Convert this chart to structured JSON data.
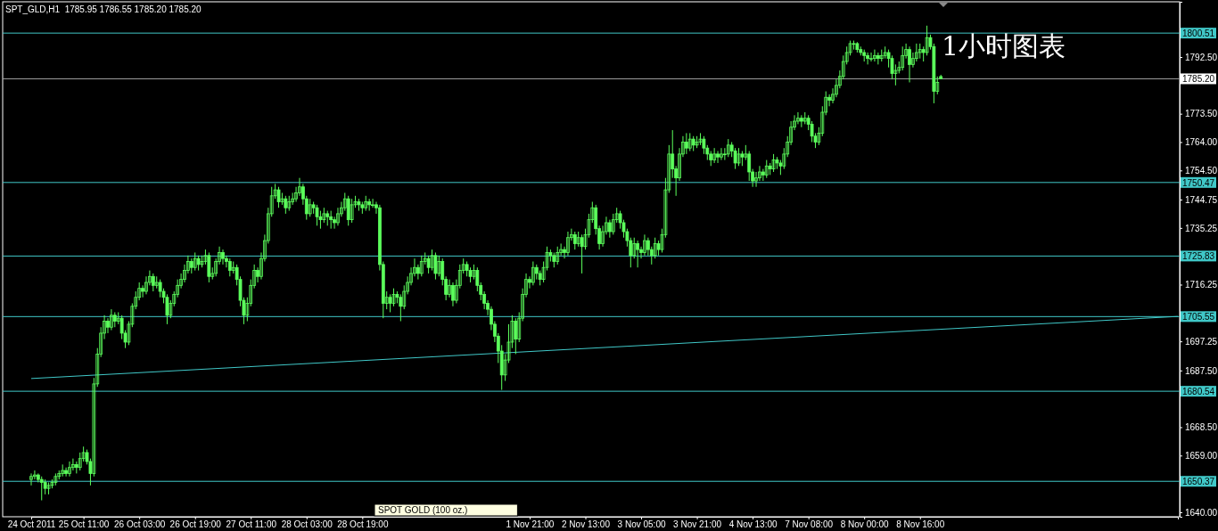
{
  "chart_data": {
    "type": "candlestick",
    "title": "SPT_GLD,H1  1785.95 1786.55 1785.20 1785.20",
    "annotations": [
      "1小时图表",
      "SPOT GOLD (100 oz.)"
    ],
    "categories": [
      "24 Oct 2011",
      null,
      null,
      null,
      null,
      null,
      null,
      null,
      null,
      null,
      null,
      null,
      null,
      null,
      null,
      "25 Oct 11:00",
      null,
      null,
      null,
      null,
      null,
      null,
      null,
      null,
      null,
      null,
      null,
      null,
      null,
      null,
      null,
      "26 Oct 03:00",
      null,
      null,
      null,
      null,
      null,
      null,
      null,
      null,
      null,
      null,
      null,
      null,
      null,
      null,
      null,
      "26 Oct 19:00",
      null,
      null,
      null,
      null,
      null,
      null,
      null,
      null,
      null,
      null,
      null,
      null,
      null,
      null,
      null,
      "27 Oct 11:00",
      null,
      null,
      null,
      null,
      null,
      null,
      null,
      null,
      null,
      null,
      null,
      null,
      null,
      null,
      null,
      "28 Oct 03:00",
      null,
      null,
      null,
      null,
      null,
      null,
      null,
      null,
      null,
      null,
      null,
      null,
      null,
      null,
      null,
      "28 Oct 19:00",
      null,
      null,
      null,
      null,
      null,
      null,
      null,
      null,
      null,
      null,
      null,
      null,
      null,
      null,
      null,
      null,
      null,
      null,
      null,
      null,
      null,
      null,
      null,
      null,
      null,
      null,
      null,
      null,
      null,
      null,
      null,
      null,
      null,
      null,
      null,
      null,
      null,
      null,
      null,
      null,
      null,
      null,
      null,
      null,
      null,
      null,
      null,
      "1 Nov 21:00",
      null,
      null,
      null,
      null,
      null,
      null,
      null,
      null,
      null,
      null,
      null,
      null,
      null,
      null,
      null,
      "2 Nov 13:00",
      null,
      null,
      null,
      null,
      null,
      null,
      null,
      null,
      null,
      null,
      null,
      null,
      null,
      null,
      null,
      "3 Nov 05:00",
      null,
      null,
      null,
      null,
      null,
      null,
      null,
      null,
      null,
      null,
      null,
      null,
      null,
      null,
      null,
      "3 Nov 21:00",
      null,
      null,
      null,
      null,
      null,
      null,
      null,
      null,
      null,
      null,
      null,
      null,
      null,
      null,
      null,
      "4 Nov 13:00",
      null,
      null,
      null,
      null,
      null,
      null,
      null,
      null,
      null,
      null,
      null,
      null,
      null,
      null,
      null,
      "7 Nov 08:00",
      null,
      null,
      null,
      null,
      null,
      null,
      null,
      null,
      null,
      null,
      null,
      null,
      null,
      null,
      null,
      "8 Nov 00:00",
      null,
      null,
      null,
      null,
      null,
      null,
      null,
      null,
      null,
      null,
      null,
      null,
      null,
      null,
      null,
      "8 Nov 16:00",
      null,
      null,
      null,
      null,
      null,
      null,
      null,
      null,
      null,
      null,
      null,
      null,
      null,
      null,
      null,
      null,
      null,
      null,
      null,
      null,
      null,
      null,
      null,
      null,
      null,
      null,
      null,
      null,
      null,
      null,
      null,
      null,
      null,
      null,
      null,
      null,
      null,
      null,
      null,
      null,
      null,
      null,
      null,
      null,
      null,
      null,
      null,
      null,
      null,
      null,
      null,
      null,
      null,
      null,
      null,
      null,
      null,
      null,
      null,
      null,
      null,
      null,
      null,
      null,
      null,
      null,
      null,
      null,
      null,
      null,
      null,
      null,
      null,
      null
    ],
    "ylim": [
      1638.5,
      1811
    ],
    "yticks": [
      {
        "value": 1640,
        "label": "1640.00"
      },
      {
        "value": 1659,
        "label": "1659.00"
      },
      {
        "value": 1668.5,
        "label": "1668.50"
      },
      {
        "value": 1687.5,
        "label": "1687.50"
      },
      {
        "value": 1697.25,
        "label": "1697.25"
      },
      {
        "value": 1716.25,
        "label": "1716.25"
      },
      {
        "value": 1735.25,
        "label": "1735.25"
      },
      {
        "value": 1744.75,
        "label": "1744.75"
      },
      {
        "value": 1754.5,
        "label": "1754.50"
      },
      {
        "value": 1764,
        "label": "1764.00"
      },
      {
        "value": 1773.5,
        "label": "1773.50"
      },
      {
        "value": 1792.5,
        "label": "1792.50"
      }
    ],
    "ref_lines": [
      {
        "axis": "y",
        "value": 1800.51,
        "label": "1800.51",
        "color": "#40c8c8"
      },
      {
        "axis": "y",
        "value": 1785.2,
        "label": "1785.20",
        "color": "#a0a0a0"
      },
      {
        "axis": "y",
        "value": 1750.47,
        "label": "1750.47",
        "color": "#40c8c8"
      },
      {
        "axis": "y",
        "value": 1725.83,
        "label": "1725.83",
        "color": "#40c8c8"
      },
      {
        "axis": "y",
        "value": 1705.55,
        "label": "1705.55",
        "color": "#40c8c8"
      },
      {
        "axis": "y",
        "value": 1680.54,
        "label": "1680.54",
        "color": "#40c8c8"
      },
      {
        "axis": "y",
        "value": 1650.37,
        "label": "1650.37",
        "color": "#40c8c8"
      }
    ],
    "color": "#5cff5c",
    "ohlc": [
      [
        1651,
        1653,
        1649,
        1652
      ],
      [
        1652,
        1654,
        1651,
        1652.5
      ],
      [
        1652.5,
        1653,
        1650,
        1651
      ],
      [
        1651,
        1652,
        1644,
        1650
      ],
      [
        1650,
        1651,
        1646,
        1648
      ],
      [
        1648,
        1650,
        1646,
        1649
      ],
      [
        1649,
        1651,
        1648,
        1650
      ],
      [
        1650,
        1653,
        1649,
        1652
      ],
      [
        1652,
        1654,
        1651,
        1653
      ],
      [
        1653,
        1656,
        1652,
        1654
      ],
      [
        1654,
        1655,
        1652,
        1653
      ],
      [
        1653,
        1657,
        1652,
        1655
      ],
      [
        1655,
        1658,
        1654,
        1656
      ],
      [
        1656,
        1657,
        1653,
        1655
      ],
      [
        1655,
        1660,
        1654,
        1658
      ],
      [
        1658,
        1662,
        1657,
        1660
      ],
      [
        1660,
        1661,
        1656,
        1657
      ],
      [
        1657,
        1658,
        1649,
        1653
      ],
      [
        1653,
        1685,
        1652,
        1683
      ],
      [
        1683,
        1695,
        1682,
        1693
      ],
      [
        1693,
        1702,
        1692,
        1700
      ],
      [
        1700,
        1706,
        1698,
        1704
      ],
      [
        1704,
        1705,
        1700,
        1702
      ],
      [
        1702,
        1708,
        1701,
        1706
      ],
      [
        1706,
        1707,
        1702,
        1704
      ],
      [
        1704,
        1707,
        1703,
        1705
      ],
      [
        1705,
        1706,
        1698,
        1700
      ],
      [
        1700,
        1701,
        1695,
        1697
      ],
      [
        1697,
        1704,
        1696,
        1703
      ],
      [
        1703,
        1710,
        1702,
        1709
      ],
      [
        1709,
        1714,
        1708,
        1712
      ],
      [
        1712,
        1717,
        1711,
        1715
      ],
      [
        1715,
        1716,
        1712,
        1714
      ],
      [
        1714,
        1719,
        1713,
        1717
      ],
      [
        1717,
        1721,
        1716,
        1719
      ],
      [
        1719,
        1720,
        1714,
        1716
      ],
      [
        1716,
        1719,
        1715,
        1717
      ],
      [
        1717,
        1718,
        1712,
        1714
      ],
      [
        1714,
        1715,
        1710,
        1712
      ],
      [
        1712,
        1713,
        1703,
        1706
      ],
      [
        1706,
        1711,
        1705,
        1710
      ],
      [
        1710,
        1714,
        1709,
        1713
      ],
      [
        1713,
        1718,
        1712,
        1716
      ],
      [
        1716,
        1720,
        1715,
        1718
      ],
      [
        1718,
        1723,
        1717,
        1721
      ],
      [
        1721,
        1726,
        1720,
        1724
      ],
      [
        1724,
        1725,
        1720,
        1722
      ],
      [
        1722,
        1727,
        1721,
        1725
      ],
      [
        1725,
        1726,
        1721,
        1723
      ],
      [
        1723,
        1726,
        1722,
        1724
      ],
      [
        1724,
        1728,
        1723,
        1726
      ],
      [
        1726,
        1727,
        1717,
        1719
      ],
      [
        1719,
        1722,
        1718,
        1720
      ],
      [
        1720,
        1725,
        1719,
        1724
      ],
      [
        1724,
        1729,
        1723,
        1727
      ],
      [
        1727,
        1728,
        1723,
        1725
      ],
      [
        1725,
        1726,
        1722,
        1724
      ],
      [
        1724,
        1725,
        1719,
        1721
      ],
      [
        1721,
        1724,
        1720,
        1722
      ],
      [
        1722,
        1723,
        1716,
        1718
      ],
      [
        1718,
        1719,
        1709,
        1711
      ],
      [
        1711,
        1712,
        1703,
        1706
      ],
      [
        1706,
        1712,
        1704,
        1710
      ],
      [
        1710,
        1718,
        1709,
        1716
      ],
      [
        1716,
        1723,
        1715,
        1721
      ],
      [
        1721,
        1722,
        1717,
        1719
      ],
      [
        1719,
        1727,
        1718,
        1725
      ],
      [
        1725,
        1733,
        1724,
        1731
      ],
      [
        1731,
        1742,
        1730,
        1740
      ],
      [
        1740,
        1749,
        1739,
        1746
      ],
      [
        1746,
        1750,
        1745,
        1748
      ],
      [
        1748,
        1749,
        1742,
        1744
      ],
      [
        1744,
        1747,
        1743,
        1745
      ],
      [
        1745,
        1746,
        1740,
        1742
      ],
      [
        1742,
        1746,
        1741,
        1744
      ],
      [
        1744,
        1747,
        1743,
        1745
      ],
      [
        1745,
        1749,
        1744,
        1747
      ],
      [
        1747,
        1752,
        1746,
        1749
      ],
      [
        1749,
        1750,
        1743,
        1745
      ],
      [
        1745,
        1746,
        1738,
        1740
      ],
      [
        1740,
        1745,
        1739,
        1743
      ],
      [
        1743,
        1744,
        1740,
        1742
      ],
      [
        1742,
        1743,
        1736,
        1739
      ],
      [
        1739,
        1741,
        1735,
        1738
      ],
      [
        1738,
        1742,
        1737,
        1740
      ],
      [
        1740,
        1741,
        1736,
        1739
      ],
      [
        1739,
        1741,
        1735,
        1738
      ],
      [
        1738,
        1739,
        1735,
        1737
      ],
      [
        1737,
        1742,
        1736,
        1740
      ],
      [
        1740,
        1744,
        1739,
        1742
      ],
      [
        1742,
        1747,
        1741,
        1745
      ],
      [
        1745,
        1746,
        1736,
        1738
      ],
      [
        1738,
        1745,
        1737,
        1743
      ],
      [
        1743,
        1746,
        1742,
        1744
      ],
      [
        1744,
        1745,
        1741,
        1743
      ],
      [
        1743,
        1744,
        1740,
        1742
      ],
      [
        1742,
        1746,
        1741,
        1744
      ],
      [
        1744,
        1745,
        1741,
        1743
      ],
      [
        1743,
        1745,
        1742,
        1743
      ],
      [
        1743,
        1744,
        1740,
        1742
      ],
      [
        1742,
        1743,
        1721,
        1723
      ],
      [
        1723,
        1724,
        1705,
        1710
      ],
      [
        1710,
        1714,
        1708,
        1712
      ],
      [
        1712,
        1713,
        1707,
        1710
      ],
      [
        1710,
        1715,
        1709,
        1713
      ],
      [
        1713,
        1714,
        1710,
        1712
      ],
      [
        1712,
        1713,
        1704,
        1709
      ],
      [
        1709,
        1716,
        1708,
        1714
      ],
      [
        1714,
        1719,
        1713,
        1717
      ],
      [
        1717,
        1722,
        1716,
        1720
      ],
      [
        1720,
        1725,
        1719,
        1722
      ],
      [
        1722,
        1723,
        1718,
        1720
      ],
      [
        1720,
        1726,
        1719,
        1724
      ],
      [
        1724,
        1727,
        1723,
        1725
      ],
      [
        1725,
        1726,
        1720,
        1722
      ],
      [
        1722,
        1728,
        1721,
        1726
      ],
      [
        1726,
        1727,
        1718,
        1720
      ],
      [
        1720,
        1726,
        1719,
        1724
      ],
      [
        1724,
        1725,
        1716,
        1718
      ],
      [
        1718,
        1719,
        1711,
        1713
      ],
      [
        1713,
        1718,
        1712,
        1716
      ],
      [
        1716,
        1717,
        1709,
        1711
      ],
      [
        1711,
        1718,
        1710,
        1716
      ],
      [
        1716,
        1723,
        1715,
        1721
      ],
      [
        1721,
        1725,
        1720,
        1723
      ],
      [
        1723,
        1724,
        1719,
        1721
      ],
      [
        1721,
        1722,
        1717,
        1719
      ],
      [
        1719,
        1723,
        1718,
        1721
      ],
      [
        1721,
        1722,
        1714,
        1716
      ],
      [
        1716,
        1717,
        1711,
        1713
      ],
      [
        1713,
        1714,
        1708,
        1710
      ],
      [
        1710,
        1711,
        1706,
        1708
      ],
      [
        1708,
        1709,
        1701,
        1703
      ],
      [
        1703,
        1704,
        1697,
        1699
      ],
      [
        1699,
        1700,
        1690,
        1694
      ],
      [
        1694,
        1696,
        1681,
        1686
      ],
      [
        1686,
        1693,
        1684,
        1691
      ],
      [
        1691,
        1703,
        1690,
        1697
      ],
      [
        1697,
        1706,
        1695,
        1704
      ],
      [
        1704,
        1705,
        1693,
        1698
      ],
      [
        1698,
        1707,
        1697,
        1705
      ],
      [
        1705,
        1715,
        1704,
        1713
      ],
      [
        1713,
        1720,
        1712,
        1718
      ],
      [
        1718,
        1719,
        1715,
        1717
      ],
      [
        1717,
        1724,
        1716,
        1722
      ],
      [
        1722,
        1723,
        1718,
        1720
      ],
      [
        1720,
        1721,
        1716,
        1718
      ],
      [
        1718,
        1724,
        1717,
        1722
      ],
      [
        1722,
        1729,
        1721,
        1727
      ],
      [
        1727,
        1728,
        1724,
        1726
      ],
      [
        1726,
        1727,
        1722,
        1724
      ],
      [
        1724,
        1729,
        1723,
        1727
      ],
      [
        1727,
        1730,
        1726,
        1728
      ],
      [
        1728,
        1729,
        1725,
        1727
      ],
      [
        1727,
        1734,
        1726,
        1732
      ],
      [
        1732,
        1735,
        1731,
        1733
      ],
      [
        1733,
        1734,
        1728,
        1730
      ],
      [
        1730,
        1734,
        1729,
        1732
      ],
      [
        1732,
        1733,
        1720,
        1729
      ],
      [
        1729,
        1735,
        1728,
        1733
      ],
      [
        1733,
        1740,
        1732,
        1738
      ],
      [
        1738,
        1744,
        1737,
        1742
      ],
      [
        1742,
        1743,
        1733,
        1735
      ],
      [
        1735,
        1736,
        1728,
        1730
      ],
      [
        1730,
        1736,
        1729,
        1734
      ],
      [
        1734,
        1739,
        1733,
        1737
      ],
      [
        1737,
        1738,
        1732,
        1734
      ],
      [
        1734,
        1740,
        1733,
        1738
      ],
      [
        1738,
        1742,
        1737,
        1740
      ],
      [
        1740,
        1741,
        1735,
        1737
      ],
      [
        1737,
        1738,
        1732,
        1734
      ],
      [
        1734,
        1735,
        1729,
        1731
      ],
      [
        1731,
        1732,
        1722,
        1726
      ],
      [
        1726,
        1732,
        1725,
        1730
      ],
      [
        1730,
        1731,
        1722,
        1728
      ],
      [
        1728,
        1729,
        1725,
        1727
      ],
      [
        1727,
        1733,
        1726,
        1731
      ],
      [
        1731,
        1732,
        1726,
        1728
      ],
      [
        1728,
        1729,
        1723,
        1726
      ],
      [
        1726,
        1732,
        1725,
        1730
      ],
      [
        1730,
        1731,
        1726,
        1728
      ],
      [
        1728,
        1735,
        1727,
        1733
      ],
      [
        1733,
        1752,
        1732,
        1748
      ],
      [
        1748,
        1763,
        1747,
        1760
      ],
      [
        1760,
        1768,
        1752,
        1755
      ],
      [
        1755,
        1756,
        1746,
        1752
      ],
      [
        1752,
        1762,
        1751,
        1760
      ],
      [
        1760,
        1766,
        1759,
        1764
      ],
      [
        1764,
        1767,
        1760,
        1762
      ],
      [
        1762,
        1767,
        1761,
        1765
      ],
      [
        1765,
        1766,
        1761,
        1763
      ],
      [
        1763,
        1766,
        1762,
        1764
      ],
      [
        1764,
        1767,
        1763,
        1765
      ],
      [
        1765,
        1766,
        1760,
        1762
      ],
      [
        1762,
        1763,
        1758,
        1760
      ],
      [
        1760,
        1761,
        1756,
        1758
      ],
      [
        1758,
        1762,
        1757,
        1760
      ],
      [
        1760,
        1761,
        1757,
        1759
      ],
      [
        1759,
        1762,
        1758,
        1760
      ],
      [
        1760,
        1762,
        1758,
        1760
      ],
      [
        1760,
        1765,
        1759,
        1763
      ],
      [
        1763,
        1764,
        1759,
        1761
      ],
      [
        1761,
        1762,
        1755,
        1757
      ],
      [
        1757,
        1762,
        1756,
        1760
      ],
      [
        1760,
        1761,
        1756,
        1759
      ],
      [
        1759,
        1763,
        1758,
        1760
      ],
      [
        1760,
        1761,
        1751,
        1754
      ],
      [
        1754,
        1755,
        1749,
        1751
      ],
      [
        1751,
        1754,
        1749,
        1752
      ],
      [
        1752,
        1756,
        1751,
        1754
      ],
      [
        1754,
        1755,
        1751,
        1753
      ],
      [
        1753,
        1758,
        1752,
        1756
      ],
      [
        1756,
        1757,
        1753,
        1755
      ],
      [
        1755,
        1760,
        1754,
        1758
      ],
      [
        1758,
        1759,
        1755,
        1757
      ],
      [
        1757,
        1758,
        1753,
        1756
      ],
      [
        1756,
        1762,
        1755,
        1760
      ],
      [
        1760,
        1766,
        1759,
        1764
      ],
      [
        1764,
        1771,
        1763,
        1769
      ],
      [
        1769,
        1773,
        1768,
        1771
      ],
      [
        1771,
        1774,
        1770,
        1772
      ],
      [
        1772,
        1773,
        1769,
        1771
      ],
      [
        1771,
        1774,
        1770,
        1772
      ],
      [
        1772,
        1773,
        1768,
        1770
      ],
      [
        1770,
        1771,
        1764,
        1766
      ],
      [
        1766,
        1767,
        1762,
        1764
      ],
      [
        1764,
        1769,
        1763,
        1767
      ],
      [
        1767,
        1776,
        1766,
        1774
      ],
      [
        1774,
        1781,
        1773,
        1779
      ],
      [
        1779,
        1780,
        1776,
        1778
      ],
      [
        1778,
        1782,
        1777,
        1780
      ],
      [
        1780,
        1785,
        1779,
        1783
      ],
      [
        1783,
        1788,
        1782,
        1786
      ],
      [
        1786,
        1793,
        1785,
        1791
      ],
      [
        1791,
        1796,
        1790,
        1794
      ],
      [
        1794,
        1798,
        1793,
        1797
      ],
      [
        1797,
        1798,
        1795,
        1797
      ],
      [
        1797,
        1797.5,
        1794,
        1795
      ],
      [
        1795,
        1796,
        1793,
        1794
      ],
      [
        1794,
        1795,
        1791,
        1793
      ],
      [
        1793,
        1794,
        1790,
        1792
      ],
      [
        1792,
        1794,
        1791,
        1792
      ],
      [
        1792,
        1795,
        1791,
        1793
      ],
      [
        1793,
        1794,
        1790,
        1792
      ],
      [
        1792,
        1795,
        1791,
        1793
      ],
      [
        1793,
        1796,
        1792,
        1794
      ],
      [
        1794,
        1795,
        1789,
        1792
      ],
      [
        1792,
        1793,
        1785,
        1787
      ],
      [
        1787,
        1790,
        1783,
        1788
      ],
      [
        1788,
        1791,
        1787,
        1789
      ],
      [
        1789,
        1796,
        1788,
        1793
      ],
      [
        1793,
        1797,
        1792,
        1795
      ],
      [
        1795,
        1796,
        1784,
        1790
      ],
      [
        1790,
        1794,
        1789,
        1792
      ],
      [
        1792,
        1797,
        1791,
        1794
      ],
      [
        1794,
        1797,
        1792,
        1795
      ],
      [
        1795,
        1796,
        1791,
        1794
      ],
      [
        1794,
        1803,
        1793,
        1799
      ],
      [
        1799,
        1800,
        1795,
        1796
      ],
      [
        1796,
        1797,
        1777,
        1781
      ],
      [
        1781,
        1786,
        1780,
        1784
      ],
      [
        1785.95,
        1786.55,
        1785.2,
        1785.2
      ],
      null,
      null,
      null,
      null,
      null,
      null,
      null,
      null,
      null,
      null,
      null,
      null,
      null,
      null,
      null,
      null,
      null,
      null,
      null,
      null,
      null,
      null,
      null,
      null,
      null,
      null,
      null,
      null,
      null,
      null,
      null,
      null,
      null,
      null,
      null,
      null,
      null,
      null,
      null,
      null,
      null,
      null,
      null,
      null,
      null,
      null,
      null,
      null,
      null,
      null,
      null,
      null,
      null,
      null,
      null,
      null,
      null,
      null,
      null,
      null,
      null,
      null,
      null,
      null,
      null,
      null,
      null,
      null
    ],
    "series": [
      {
        "type": "line",
        "color": "#40c8c8",
        "values": [
          1684.8,
          null,
          null,
          null,
          null,
          null,
          null,
          null,
          null,
          null,
          null,
          null,
          null,
          null,
          null,
          null,
          null,
          null,
          null,
          null,
          null,
          null,
          null,
          null,
          null,
          null,
          null,
          null,
          null,
          null,
          null,
          null,
          null,
          null,
          null,
          null,
          null,
          null,
          null,
          null,
          null,
          null,
          null,
          null,
          null,
          null,
          null,
          null,
          null,
          null,
          null,
          null,
          null,
          null,
          null,
          null,
          null,
          null,
          null,
          null,
          null,
          null,
          null,
          null,
          null,
          null,
          null,
          null,
          null,
          null,
          null,
          null,
          null,
          null,
          null,
          null,
          null,
          null,
          null,
          null,
          null,
          null,
          null,
          null,
          null,
          null,
          null,
          null,
          null,
          null,
          null,
          null,
          null,
          null,
          null,
          null,
          null,
          null,
          null,
          null,
          null,
          null,
          null,
          null,
          null,
          null,
          null,
          null,
          null,
          null,
          null,
          null,
          null,
          null,
          null,
          null,
          null,
          null,
          null,
          null,
          null,
          null,
          null,
          null,
          null,
          null,
          null,
          null,
          null,
          null,
          null,
          null,
          null,
          null,
          null,
          null,
          null,
          null,
          null,
          null,
          null,
          null,
          null,
          null,
          null,
          null,
          null,
          null,
          null,
          null,
          null,
          null,
          null,
          null,
          null,
          null,
          null,
          null,
          null,
          null,
          null,
          null,
          null,
          null,
          null,
          null,
          null,
          null,
          null,
          null,
          null,
          null,
          null,
          null,
          null,
          null,
          null,
          null,
          null,
          null,
          null,
          null,
          null,
          null,
          null,
          null,
          null,
          null,
          null,
          null,
          null,
          null,
          null,
          null,
          null,
          null,
          null,
          null,
          null,
          null,
          null,
          null,
          null,
          null,
          null,
          null,
          null,
          null,
          null,
          null,
          null,
          null,
          null,
          null,
          null,
          null,
          null,
          null,
          null,
          null,
          null,
          null,
          null,
          null,
          null,
          null,
          null,
          null,
          null,
          null,
          null,
          null,
          null,
          null,
          null,
          null,
          null,
          null,
          null,
          null,
          null,
          null,
          null,
          null,
          null,
          null,
          null,
          null,
          null,
          null,
          null,
          null,
          null,
          null,
          null,
          null,
          null,
          null,
          null,
          null,
          null,
          null,
          null,
          null,
          null,
          null,
          null,
          null,
          null,
          null,
          null,
          null,
          null,
          null,
          null,
          null,
          null,
          null,
          null,
          null,
          null,
          null,
          null,
          null,
          null,
          null,
          null,
          null,
          null,
          null,
          null,
          null,
          null,
          null,
          null,
          null,
          null,
          null,
          null,
          null,
          null,
          null,
          null,
          null,
          null,
          null,
          null,
          null,
          null,
          null,
          null,
          null,
          null,
          null,
          null,
          null,
          null,
          null,
          null,
          null,
          null,
          null,
          null,
          null,
          null,
          null,
          null,
          null,
          null,
          1705.6
        ]
      }
    ]
  }
}
